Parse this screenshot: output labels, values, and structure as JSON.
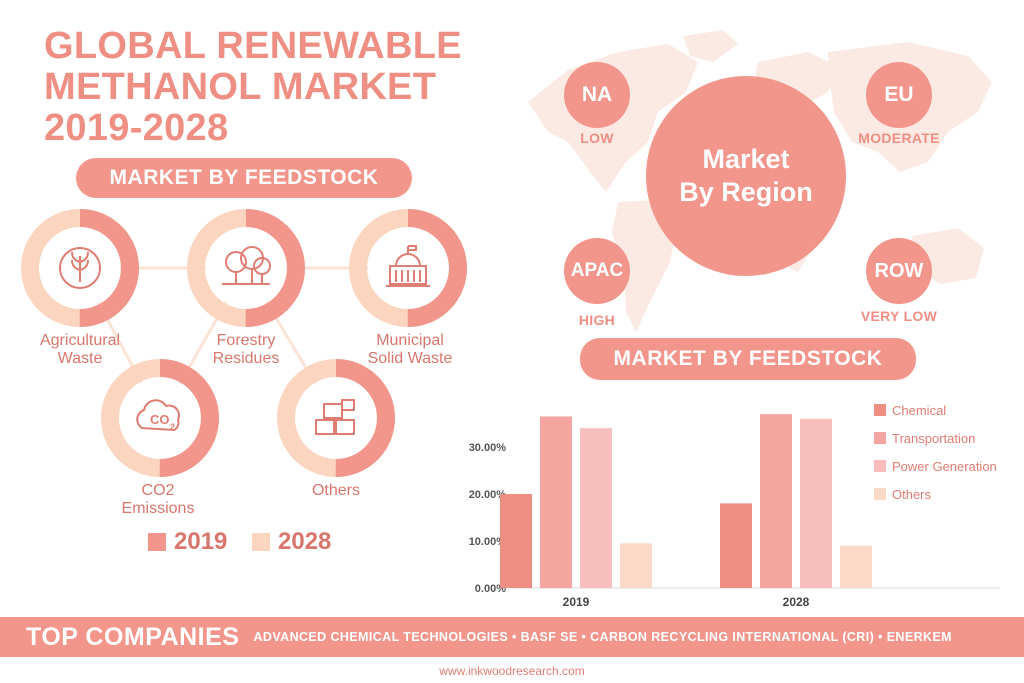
{
  "title": {
    "line1": "GLOBAL RENEWABLE",
    "line2": "METHANOL MARKET",
    "line3": "2019-2028"
  },
  "left_section": {
    "heading": "MARKET BY FEEDSTOCK",
    "donuts": [
      {
        "label_line1": "Agricultural",
        "label_line2": "Waste",
        "icon": "wheat-icon",
        "share_2019": 0.5
      },
      {
        "label_line1": "Forestry",
        "label_line2": "Residues",
        "icon": "trees-icon",
        "share_2019": 0.5
      },
      {
        "label_line1": "Municipal",
        "label_line2": "Solid Waste",
        "icon": "building-icon",
        "share_2019": 0.5
      },
      {
        "label_line1": "CO2",
        "label_line2": "Emissions",
        "icon": "co2-icon",
        "share_2019": 0.5
      },
      {
        "label_line1": "Others",
        "label_line2": "",
        "icon": "boxes-icon",
        "share_2019": 0.5
      }
    ],
    "legend": {
      "y2019": "2019",
      "y2028": "2028"
    }
  },
  "region": {
    "center": {
      "line1": "Market",
      "line2": "By Region"
    },
    "items": [
      {
        "code": "NA",
        "level": "LOW"
      },
      {
        "code": "EU",
        "level": "MODERATE"
      },
      {
        "code": "APAC",
        "level": "HIGH"
      },
      {
        "code": "ROW",
        "level": "VERY LOW"
      }
    ]
  },
  "right_section": {
    "heading": "MARKET BY FEEDSTOCK"
  },
  "chart_data": {
    "type": "bar",
    "title": "MARKET BY FEEDSTOCK",
    "categories": [
      "2019",
      "2028"
    ],
    "series": [
      {
        "name": "Chemical",
        "values": [
          20.0,
          18.0
        ],
        "color": "#ef8f84"
      },
      {
        "name": "Transportation",
        "values": [
          36.5,
          37.0
        ],
        "color": "#f4a5a0"
      },
      {
        "name": "Power Generation",
        "values": [
          34.0,
          36.0
        ],
        "color": "#f7bebb"
      },
      {
        "name": "Others",
        "values": [
          9.5,
          9.0
        ],
        "color": "#fbd9c7"
      }
    ],
    "yticks": [
      "0.00%",
      "10.00%",
      "20.00%",
      "30.00%"
    ],
    "ylim": [
      0,
      40
    ],
    "legend_position": "right"
  },
  "footer": {
    "heading": "TOP COMPANIES",
    "companies": "ADVANCED CHEMICAL TECHNOLOGIES  •  BASF SE  •  CARBON RECYCLING INTERNATIONAL (CRI)  •  ENERKEM",
    "url": "www.inkwoodresearch.com"
  },
  "colors": {
    "primary": "#f2968c",
    "secondary": "#fbd5bf",
    "text": "#e07d73",
    "map": "#fbeae3"
  }
}
